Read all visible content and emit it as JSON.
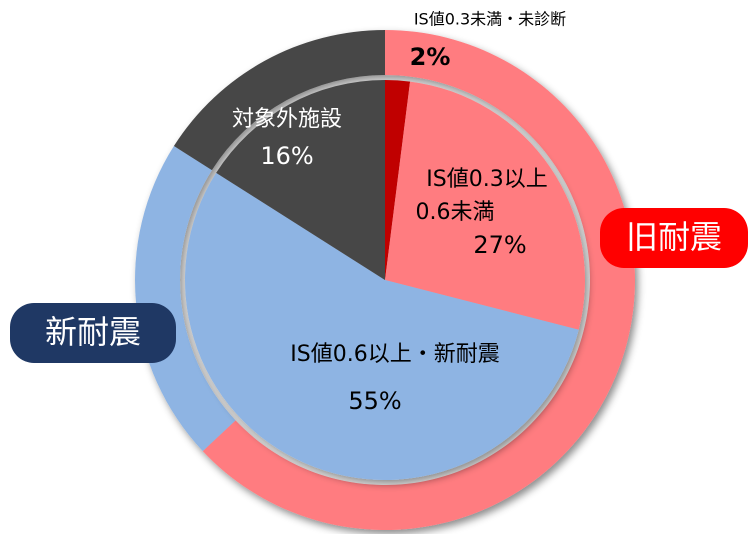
{
  "chart_data": {
    "type": "pie",
    "inner": {
      "categories": [
        "IS値0.3未満・未診断",
        [
          "IS値0.3以上",
          "0.6未満"
        ],
        "IS値0.6以上・新耐震",
        "対象外施設"
      ],
      "values": [
        2,
        27,
        55,
        16
      ],
      "value_labels": [
        "2%",
        "27%",
        "55%",
        "16%"
      ],
      "colors": [
        "#c00000",
        "#ff7c80",
        "#8eb4e3",
        "#474747"
      ]
    },
    "outer": {
      "categories": [
        "旧耐震",
        "新耐震",
        null
      ],
      "values": [
        63,
        21,
        16
      ],
      "colors": [
        "#ff7c80",
        "#8eb4e3",
        "#474747"
      ],
      "label_colors": [
        "#ff0000",
        "#1f3864",
        null
      ]
    }
  }
}
